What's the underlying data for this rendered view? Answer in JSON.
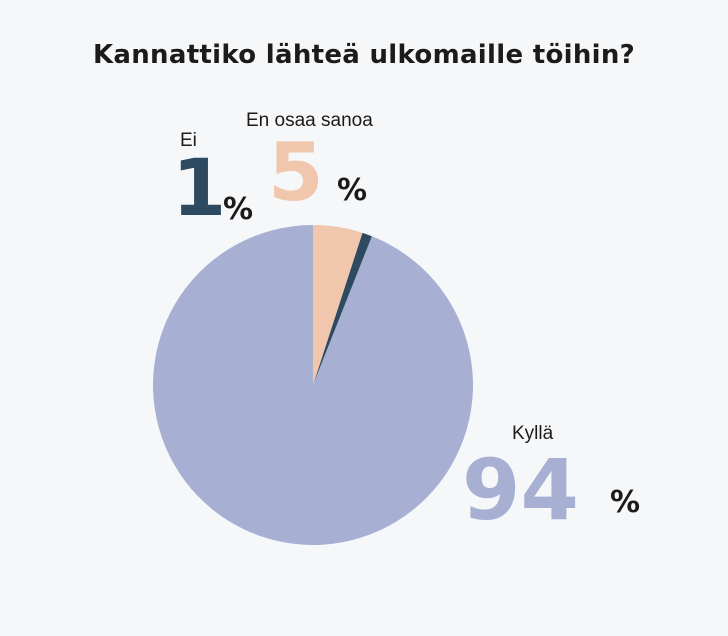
{
  "chart_data": {
    "type": "pie",
    "title": "Kannattiko lähteä ulkomaille töihin?",
    "percent_sign": "%",
    "slices": [
      {
        "label": "Kyllä",
        "value": 94,
        "display": "94",
        "color": "#a7b0d3"
      },
      {
        "label": "Ei",
        "value": 1,
        "display": "1",
        "color": "#2d4a61"
      },
      {
        "label": "En osaa sanoa",
        "value": 5,
        "display": "5",
        "color": "#f0c6ad"
      }
    ],
    "legend": "none",
    "start_angle": "12 o'clock",
    "direction": "counter-clockwise"
  }
}
